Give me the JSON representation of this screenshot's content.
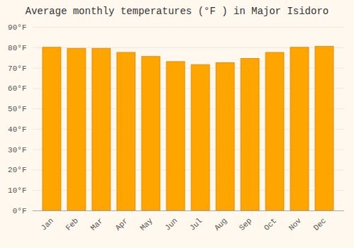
{
  "chart_data": {
    "type": "bar",
    "title": "Average monthly temperatures (°F ) in Major Isidoro",
    "categories": [
      "Jan",
      "Feb",
      "Mar",
      "Apr",
      "May",
      "Jun",
      "Jul",
      "Aug",
      "Sep",
      "Oct",
      "Nov",
      "Dec"
    ],
    "values": [
      80,
      79.5,
      79.5,
      77.5,
      75.5,
      73,
      71.5,
      72.5,
      74.5,
      77.5,
      80,
      80.5
    ],
    "color": "#FFA500",
    "ylim": [
      0,
      90
    ],
    "yticks": [
      {
        "value": 0,
        "label": "0°F"
      },
      {
        "value": 10,
        "label": "10°F"
      },
      {
        "value": 20,
        "label": "20°F"
      },
      {
        "value": 30,
        "label": "30°F"
      },
      {
        "value": 40,
        "label": "40°F"
      },
      {
        "value": 50,
        "label": "50°F"
      },
      {
        "value": 60,
        "label": "60°F"
      },
      {
        "value": 70,
        "label": "70°F"
      },
      {
        "value": 80,
        "label": "80°F"
      },
      {
        "value": 90,
        "label": "90°F"
      }
    ],
    "grid": true
  }
}
